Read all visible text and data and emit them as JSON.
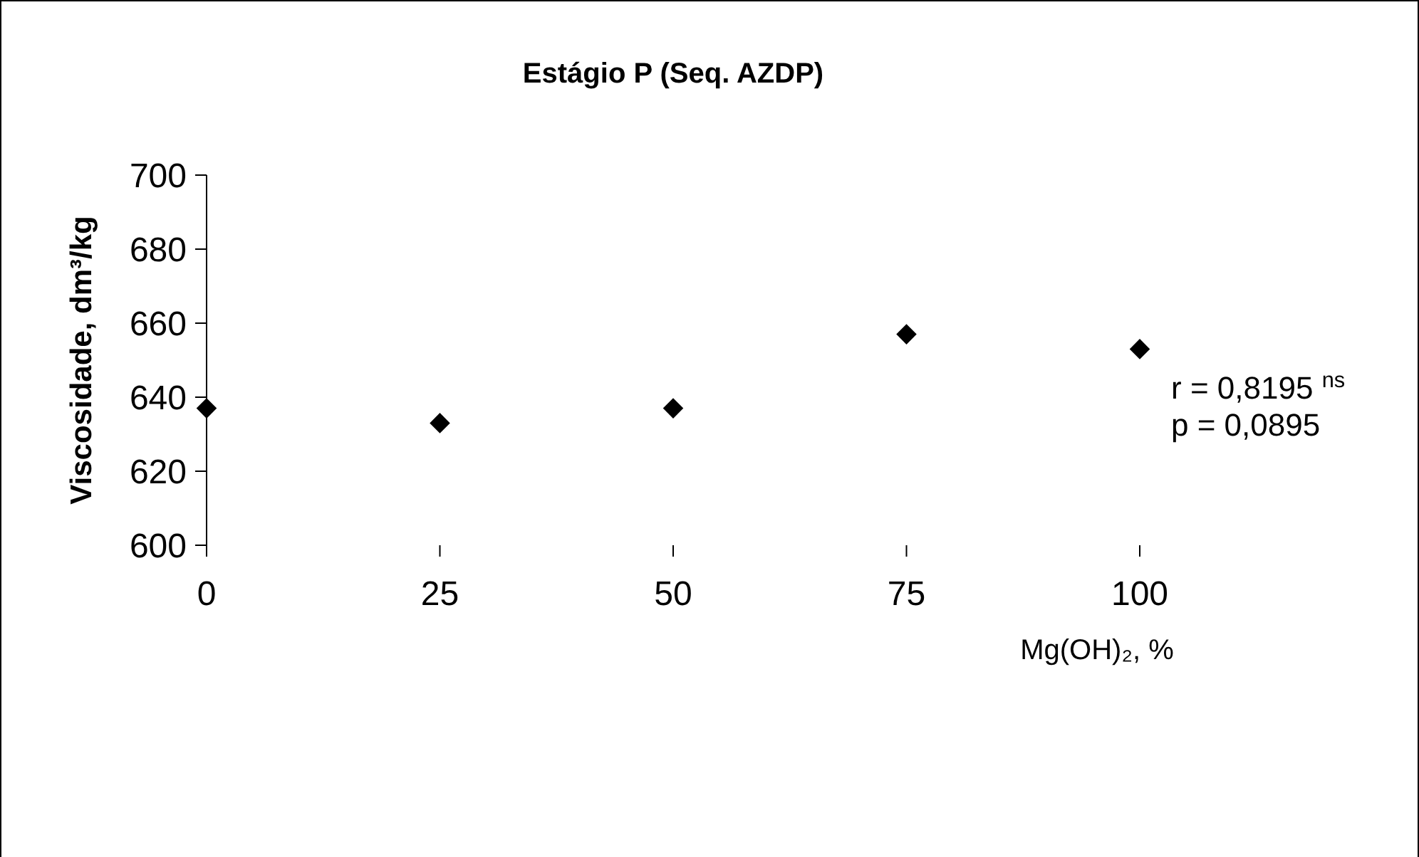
{
  "chart_data": {
    "type": "scatter",
    "title": "Estágio P (Seq. AZDP)",
    "xlabel": "Mg(OH)₂, %",
    "ylabel": "Viscosidade, dm³/kg",
    "x": [
      0,
      25,
      50,
      75,
      100
    ],
    "series": [
      {
        "color": "#000000",
        "values": [
          637,
          633,
          637,
          657,
          653
        ]
      }
    ],
    "xlim": [
      0,
      100
    ],
    "xticks": [
      0,
      25,
      50,
      75,
      100
    ],
    "ylim": [
      600,
      700
    ],
    "yticks": [
      600,
      620,
      640,
      660,
      680,
      700
    ],
    "marker": "diamond",
    "grid": false,
    "annotations": [
      "r = 0,8195 $^{ns}$",
      "p = 0,0895"
    ]
  }
}
